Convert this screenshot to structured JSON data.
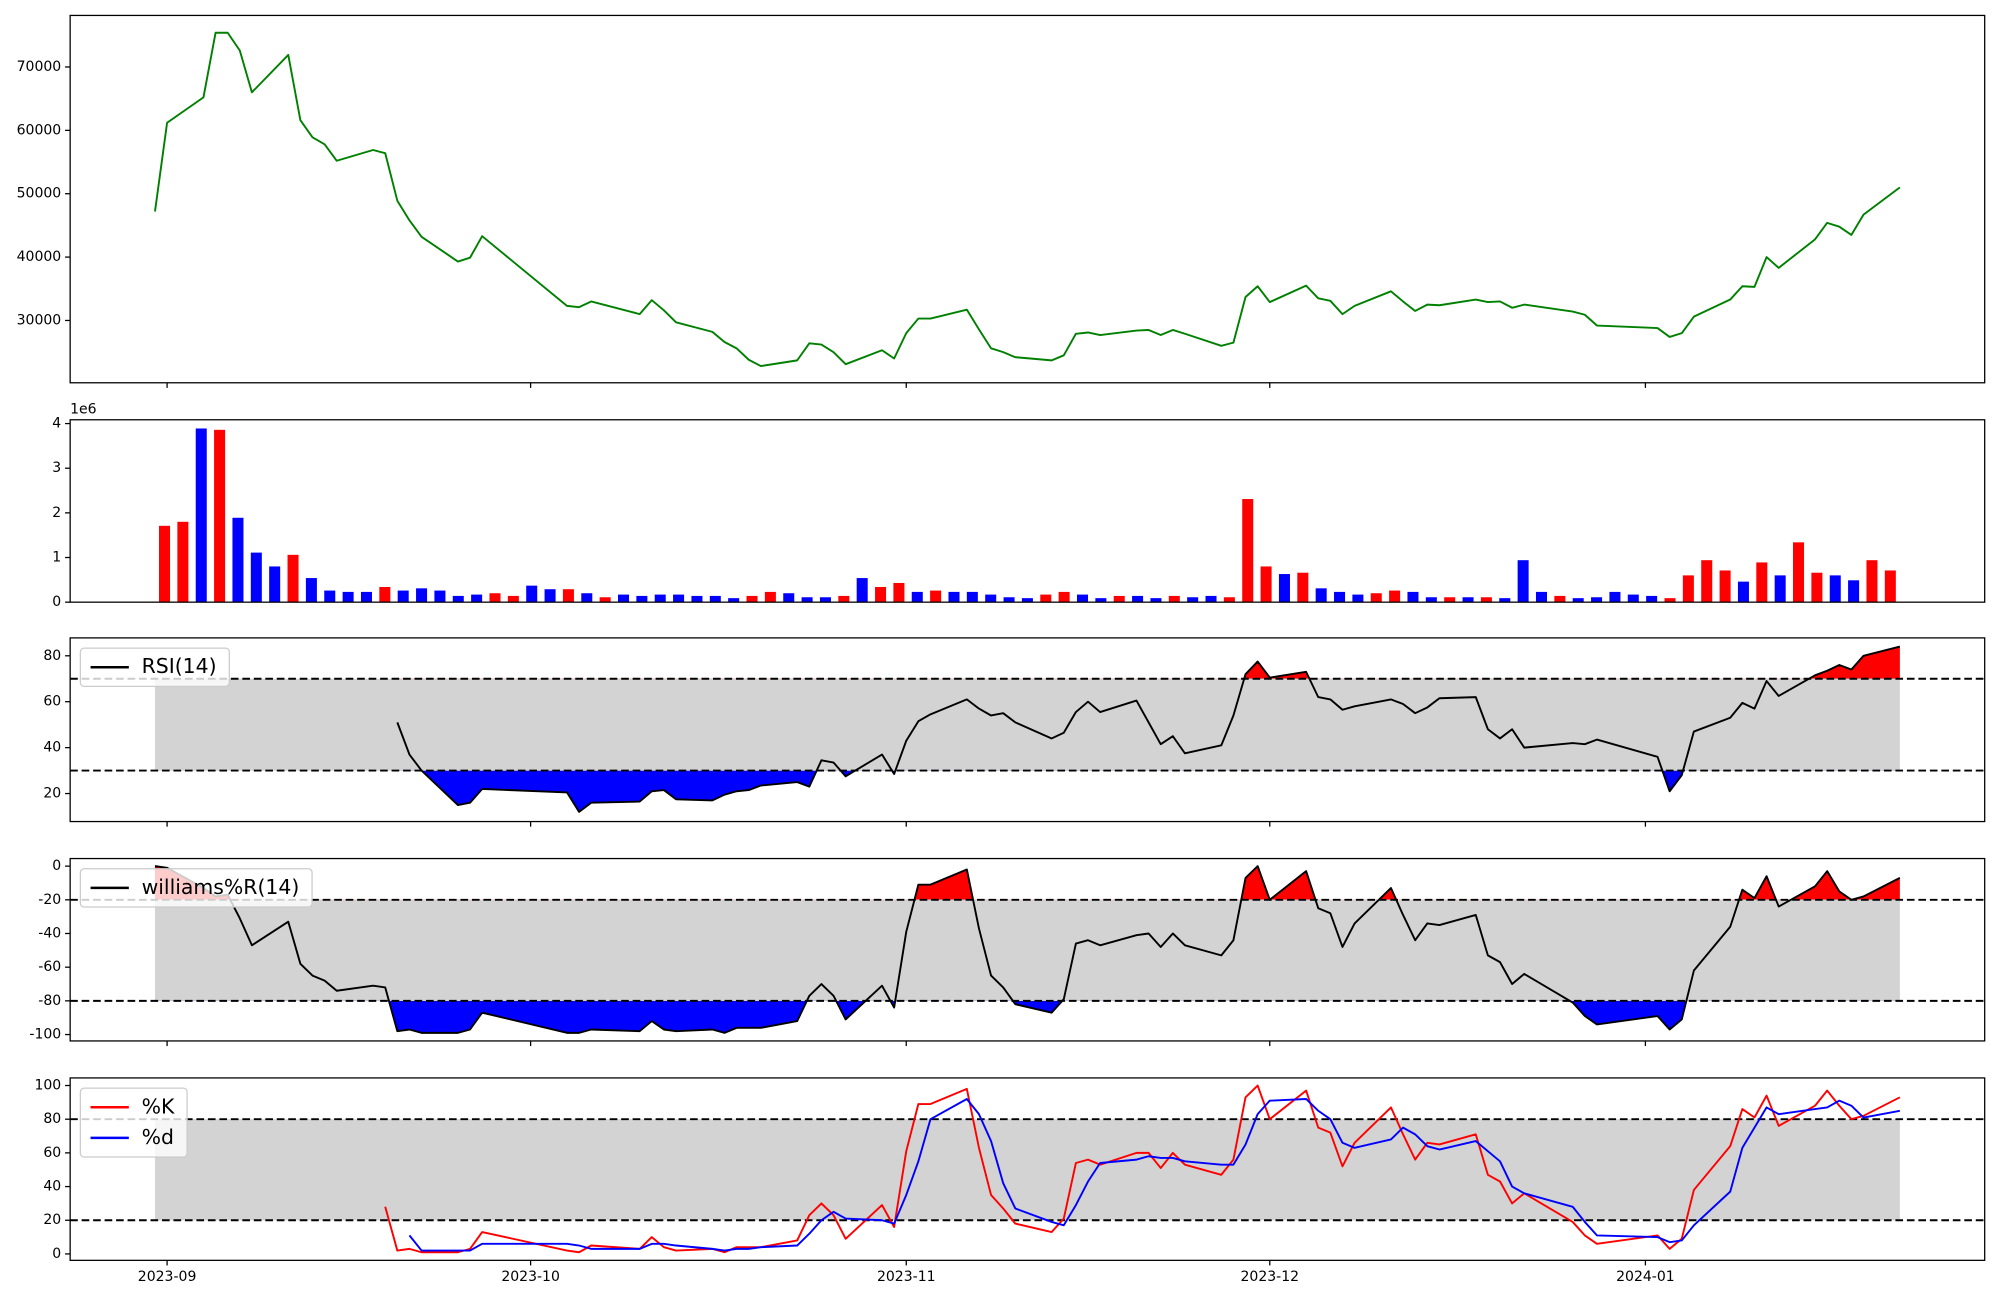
{
  "chart_data": [
    {
      "type": "line",
      "color": "green",
      "x": [
        19600,
        19601,
        19604,
        19605,
        19606,
        19607,
        19608,
        19611,
        19612,
        19613,
        19614,
        19615,
        19618,
        19619,
        19620,
        19621,
        19622,
        19625,
        19626,
        19627,
        19634,
        19635,
        19636,
        19640,
        19641,
        19642,
        19643,
        19646,
        19647,
        19648,
        19649,
        19650,
        19653,
        19654,
        19655,
        19656,
        19657,
        19660,
        19661,
        19662,
        19663,
        19664,
        19667,
        19668,
        19669,
        19670,
        19671,
        19674,
        19675,
        19676,
        19677,
        19678,
        19681,
        19682,
        19683,
        19684,
        19685,
        19688,
        19689,
        19690,
        19691,
        19692,
        19695,
        19696,
        19697,
        19698,
        19699,
        19702,
        19703,
        19704,
        19705,
        19706,
        19709,
        19710,
        19711,
        19712,
        19713,
        19717,
        19718,
        19719,
        19724,
        19725,
        19726,
        19727,
        19730,
        19731,
        19732,
        19733,
        19734,
        19737,
        19738,
        19739,
        19740,
        19741,
        19744
      ],
      "values": [
        47200,
        61200,
        65200,
        75400,
        75400,
        72600,
        66000,
        71900,
        61600,
        58900,
        57800,
        55200,
        56900,
        56400,
        48900,
        45800,
        43200,
        39300,
        39900,
        43300,
        32300,
        32100,
        33000,
        31000,
        33200,
        31600,
        29700,
        28200,
        26600,
        25600,
        23800,
        22800,
        23700,
        26400,
        26200,
        25000,
        23100,
        25300,
        24000,
        28000,
        30300,
        30300,
        31700,
        28600,
        25600,
        25000,
        24200,
        23700,
        24500,
        27900,
        28100,
        27700,
        28400,
        28500,
        27700,
        28500,
        27900,
        26000,
        26500,
        33700,
        35400,
        32900,
        35500,
        33500,
        33100,
        31000,
        32300,
        34600,
        33000,
        31500,
        32500,
        32400,
        33300,
        32900,
        33000,
        32000,
        32500,
        31400,
        30900,
        29200,
        28800,
        27400,
        28000,
        30600,
        33300,
        35400,
        35300,
        40000,
        38300,
        42800,
        45400,
        44800,
        43500,
        46700,
        51000
      ],
      "xlim": [
        19593,
        19751
      ],
      "ylim": [
        20165,
        78135
      ],
      "yticks": [
        30000,
        40000,
        50000,
        60000,
        70000
      ]
    },
    {
      "type": "bar",
      "values": [
        1710000,
        1800000,
        3890000,
        3860000,
        1890000,
        1110000,
        800000,
        1060000,
        540000,
        260000,
        230000,
        230000,
        340000,
        260000,
        310000,
        260000,
        140000,
        170000,
        200000,
        140000,
        370000,
        290000,
        290000,
        200000,
        110000,
        170000,
        140000,
        170000,
        170000,
        140000,
        140000,
        90000,
        140000,
        230000,
        200000,
        110000,
        110000,
        140000,
        540000,
        340000,
        430000,
        230000,
        260000,
        230000,
        230000,
        170000,
        110000,
        90000,
        170000,
        230000,
        170000,
        90000,
        140000,
        140000,
        90000,
        140000,
        110000,
        140000,
        110000,
        2310000,
        800000,
        630000,
        660000,
        310000,
        230000,
        170000,
        200000,
        260000,
        230000,
        110000,
        110000,
        110000,
        110000,
        90000,
        940000,
        230000,
        140000,
        90000,
        110000,
        230000,
        170000,
        140000,
        90000,
        600000,
        940000,
        710000,
        460000,
        890000,
        600000,
        1340000,
        660000,
        600000,
        490000,
        940000,
        710000
      ],
      "colors": [
        "red",
        "red",
        "blue",
        "red",
        "blue",
        "blue",
        "blue",
        "red",
        "blue",
        "blue",
        "blue",
        "blue",
        "red",
        "blue",
        "blue",
        "blue",
        "blue",
        "blue",
        "red",
        "red",
        "blue",
        "blue",
        "red",
        "blue",
        "red",
        "blue",
        "blue",
        "blue",
        "blue",
        "blue",
        "blue",
        "blue",
        "red",
        "red",
        "blue",
        "blue",
        "blue",
        "red",
        "blue",
        "red",
        "red",
        "blue",
        "red",
        "blue",
        "blue",
        "blue",
        "blue",
        "blue",
        "red",
        "red",
        "blue",
        "blue",
        "red",
        "blue",
        "blue",
        "red",
        "blue",
        "blue",
        "red",
        "red",
        "red",
        "blue",
        "red",
        "blue",
        "blue",
        "blue",
        "red",
        "red",
        "blue",
        "blue",
        "red",
        "blue",
        "red",
        "blue",
        "blue",
        "blue",
        "red",
        "blue",
        "blue",
        "blue",
        "blue",
        "blue",
        "red",
        "red",
        "red",
        "red",
        "blue",
        "red",
        "blue",
        "red",
        "red",
        "blue",
        "blue",
        "red",
        "red"
      ],
      "xlim": [
        -5.14,
        99.14
      ],
      "ylim": [
        0,
        4085000
      ],
      "yticks": [
        0,
        {
          "value": 1000000,
          "label": "1"
        },
        {
          "value": 2000000,
          "label": "2"
        },
        {
          "value": 3000000,
          "label": "3"
        },
        {
          "value": 4000000,
          "label": "4"
        }
      ],
      "offset_label": "1e6"
    },
    {
      "type": "indicator",
      "x": [
        19600,
        19601,
        19604,
        19605,
        19606,
        19607,
        19608,
        19611,
        19612,
        19613,
        19614,
        19615,
        19618,
        19619,
        19620,
        19621,
        19622,
        19625,
        19626,
        19627,
        19634,
        19635,
        19636,
        19640,
        19641,
        19642,
        19643,
        19646,
        19647,
        19648,
        19649,
        19650,
        19653,
        19654,
        19655,
        19656,
        19657,
        19660,
        19661,
        19662,
        19663,
        19664,
        19667,
        19668,
        19669,
        19670,
        19671,
        19674,
        19675,
        19676,
        19677,
        19678,
        19681,
        19682,
        19683,
        19684,
        19685,
        19688,
        19689,
        19690,
        19691,
        19692,
        19695,
        19696,
        19697,
        19698,
        19699,
        19702,
        19703,
        19704,
        19705,
        19706,
        19709,
        19710,
        19711,
        19712,
        19713,
        19717,
        19718,
        19719,
        19724,
        19725,
        19726,
        19727,
        19730,
        19731,
        19732,
        19733,
        19734,
        19737,
        19738,
        19739,
        19740,
        19741,
        19744
      ],
      "series": [
        {
          "name": "RSI(14)",
          "color": "black",
          "values": [
            null,
            null,
            null,
            null,
            null,
            null,
            null,
            null,
            null,
            null,
            null,
            null,
            null,
            null,
            51,
            37,
            30,
            15,
            16,
            22,
            20.5,
            12,
            16,
            16.5,
            21,
            21.5,
            17.5,
            17,
            19.5,
            21,
            21.5,
            23.5,
            25,
            23,
            34.5,
            33.5,
            27.5,
            37,
            28.5,
            43,
            51.5,
            54.5,
            61,
            57,
            54,
            55,
            51,
            44,
            46.5,
            55.5,
            60,
            55.5,
            60.5,
            51,
            41.5,
            45,
            37.5,
            41,
            54,
            72,
            77.5,
            70.5,
            73,
            62,
            61,
            56.5,
            58,
            61,
            59,
            55,
            57.5,
            61.5,
            62,
            48,
            44,
            48,
            40,
            42,
            41.5,
            43.5,
            36,
            21,
            28,
            47,
            53,
            59.5,
            57,
            69,
            62.5,
            71.5,
            73.5,
            76,
            74,
            80,
            84
          ]
        }
      ],
      "band": [
        30,
        70
      ],
      "band_color": "lightgray",
      "upper_fill": "red",
      "lower_fill": "blue",
      "legend": "upper left",
      "xlim": [
        19593,
        19751
      ],
      "ylim": [
        7.8,
        87.8
      ],
      "yticks": [
        20,
        40,
        60,
        80
      ]
    },
    {
      "type": "indicator",
      "x": [
        19600,
        19601,
        19604,
        19605,
        19606,
        19607,
        19608,
        19611,
        19612,
        19613,
        19614,
        19615,
        19618,
        19619,
        19620,
        19621,
        19622,
        19625,
        19626,
        19627,
        19634,
        19635,
        19636,
        19640,
        19641,
        19642,
        19643,
        19646,
        19647,
        19648,
        19649,
        19650,
        19653,
        19654,
        19655,
        19656,
        19657,
        19660,
        19661,
        19662,
        19663,
        19664,
        19667,
        19668,
        19669,
        19670,
        19671,
        19674,
        19675,
        19676,
        19677,
        19678,
        19681,
        19682,
        19683,
        19684,
        19685,
        19688,
        19689,
        19690,
        19691,
        19692,
        19695,
        19696,
        19697,
        19698,
        19699,
        19702,
        19703,
        19704,
        19705,
        19706,
        19709,
        19710,
        19711,
        19712,
        19713,
        19717,
        19718,
        19719,
        19724,
        19725,
        19726,
        19727,
        19730,
        19731,
        19732,
        19733,
        19734,
        19737,
        19738,
        19739,
        19740,
        19741,
        19744
      ],
      "series": [
        {
          "name": "williams%R(14)",
          "color": "black",
          "values": [
            0,
            -1,
            -13,
            -18,
            -17,
            -31,
            -47,
            -33,
            -58,
            -65,
            -68,
            -74,
            -71,
            -72,
            -98,
            -97,
            -99,
            -99,
            -97,
            -87,
            -99,
            -99,
            -97,
            -98,
            -92,
            -97,
            -98,
            -97,
            -99,
            -96,
            -96,
            -96,
            -92,
            -77,
            -70,
            -77,
            -91,
            -71,
            -84,
            -39,
            -11,
            -11,
            -2,
            -37,
            -65,
            -72,
            -82,
            -87,
            -79,
            -46,
            -44,
            -47,
            -41,
            -40,
            -48,
            -40,
            -47,
            -53,
            -44,
            -7,
            0,
            -20,
            -3,
            -25,
            -28,
            -48,
            -34,
            -13,
            -29,
            -44,
            -34,
            -35,
            -29,
            -53,
            -57,
            -70,
            -64,
            -81,
            -89,
            -94,
            -89,
            -97,
            -91,
            -62,
            -36,
            -14,
            -19,
            -6,
            -24,
            -12,
            -3,
            -15,
            -20,
            -18,
            -7
          ]
        }
      ],
      "band": [
        -80,
        -20
      ],
      "band_color": "lightgray",
      "upper_fill": "red",
      "lower_fill": "blue",
      "legend": "upper left",
      "xlim": [
        19593,
        19751
      ],
      "ylim": [
        -103.8,
        4.5
      ],
      "yticks": [
        -100,
        -80,
        -60,
        -40,
        -20,
        0
      ]
    },
    {
      "type": "indicator",
      "x": [
        19600,
        19601,
        19604,
        19605,
        19606,
        19607,
        19608,
        19611,
        19612,
        19613,
        19614,
        19615,
        19618,
        19619,
        19620,
        19621,
        19622,
        19625,
        19626,
        19627,
        19634,
        19635,
        19636,
        19640,
        19641,
        19642,
        19643,
        19646,
        19647,
        19648,
        19649,
        19650,
        19653,
        19654,
        19655,
        19656,
        19657,
        19660,
        19661,
        19662,
        19663,
        19664,
        19667,
        19668,
        19669,
        19670,
        19671,
        19674,
        19675,
        19676,
        19677,
        19678,
        19681,
        19682,
        19683,
        19684,
        19685,
        19688,
        19689,
        19690,
        19691,
        19692,
        19695,
        19696,
        19697,
        19698,
        19699,
        19702,
        19703,
        19704,
        19705,
        19706,
        19709,
        19710,
        19711,
        19712,
        19713,
        19717,
        19718,
        19719,
        19724,
        19725,
        19726,
        19727,
        19730,
        19731,
        19732,
        19733,
        19734,
        19737,
        19738,
        19739,
        19740,
        19741,
        19744
      ],
      "series": [
        {
          "name": "%K",
          "color": "red",
          "values": [
            null,
            null,
            null,
            null,
            null,
            null,
            null,
            null,
            null,
            null,
            null,
            null,
            null,
            28,
            2,
            3,
            1,
            1,
            3,
            13,
            2,
            1,
            5,
            3,
            10,
            4,
            2,
            3,
            1,
            4,
            4,
            4,
            8,
            23,
            30,
            23,
            9,
            29,
            16,
            61,
            89,
            89,
            98,
            63,
            35,
            27,
            18,
            13,
            21,
            54,
            56,
            53,
            60,
            60,
            51,
            60,
            53,
            47,
            56,
            93,
            100,
            80,
            97,
            75,
            72,
            52,
            66,
            87,
            71,
            56,
            66,
            65,
            71,
            47,
            43,
            30,
            36,
            19,
            11,
            6,
            11,
            3,
            9,
            38,
            64,
            86,
            81,
            94,
            76,
            88,
            97,
            88,
            80,
            82,
            93
          ]
        },
        {
          "name": "%d",
          "color": "blue",
          "values": [
            null,
            null,
            null,
            null,
            null,
            null,
            null,
            null,
            null,
            null,
            null,
            null,
            null,
            null,
            null,
            11,
            2,
            2,
            2,
            6,
            6,
            5,
            3,
            3,
            6,
            6,
            5,
            3,
            2,
            3,
            3,
            4,
            5,
            12,
            20,
            25,
            21,
            20,
            18,
            35,
            55,
            80,
            92,
            83,
            67,
            42,
            27,
            19,
            17,
            29,
            43,
            54,
            56,
            58,
            57,
            57,
            55,
            53,
            53,
            65,
            83,
            91,
            92,
            85,
            80,
            66,
            63,
            68,
            75,
            71,
            64,
            62,
            67,
            61,
            55,
            40,
            36,
            28,
            19,
            11,
            10,
            7,
            8,
            17,
            37,
            63,
            75,
            87,
            83,
            86,
            87,
            91,
            88,
            81,
            85
          ]
        }
      ],
      "band": [
        20,
        80
      ],
      "band_color": "lightgray",
      "legend": "upper left",
      "xlim": [
        19593,
        19751
      ],
      "ylim": [
        -3.8,
        104.5
      ],
      "yticks": [
        0,
        20,
        40,
        60,
        80,
        100
      ],
      "xticks": [
        {
          "value": 19601,
          "label": "2023-09"
        },
        {
          "value": 19631,
          "label": "2023-10"
        },
        {
          "value": 19662,
          "label": "2023-11"
        },
        {
          "value": 19692,
          "label": "2023-12"
        },
        {
          "value": 19723,
          "label": "2024-01"
        }
      ]
    }
  ]
}
